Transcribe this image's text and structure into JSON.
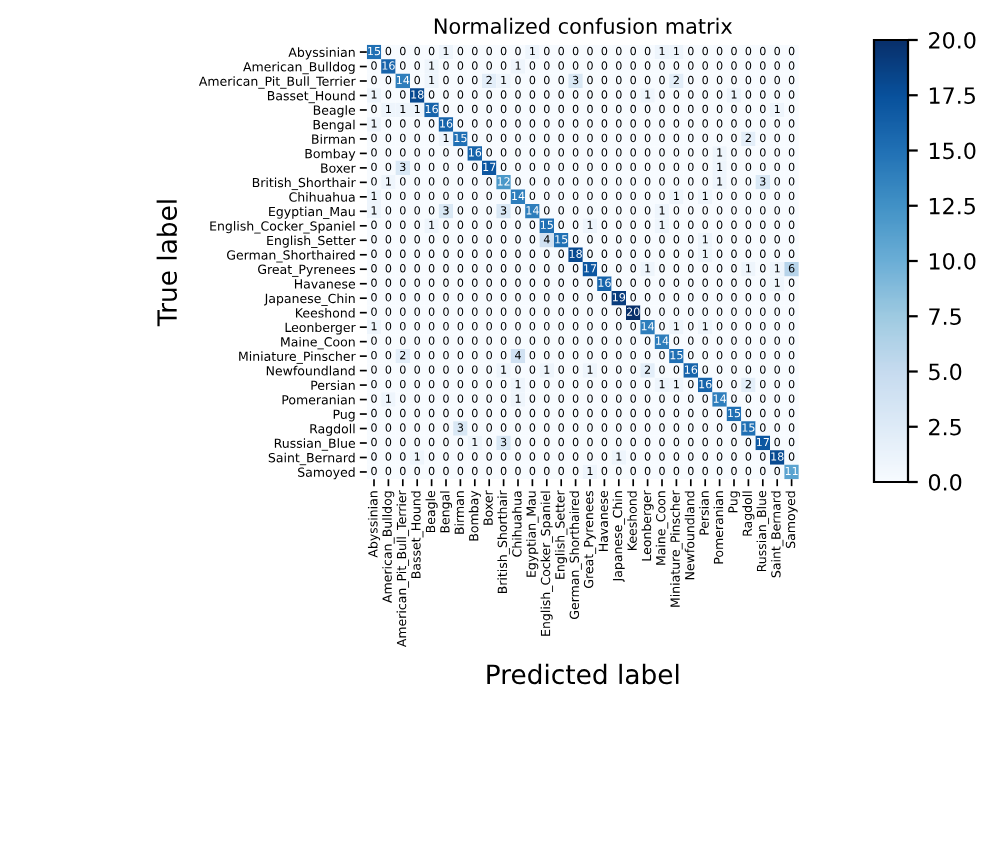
{
  "chart_data": {
    "type": "heatmap",
    "title": "Normalized confusion matrix",
    "xlabel": "Predicted label",
    "ylabel": "True label",
    "categories": [
      "Abyssinian",
      "American_Bulldog",
      "American_Pit_Bull_Terrier",
      "Basset_Hound",
      "Beagle",
      "Bengal",
      "Birman",
      "Bombay",
      "Boxer",
      "British_Shorthair",
      "Chihuahua",
      "Egyptian_Mau",
      "English_Cocker_Spaniel",
      "English_Setter",
      "German_Shorthaired",
      "Great_Pyrenees",
      "Havanese",
      "Japanese_Chin",
      "Keeshond",
      "Leonberger",
      "Maine_Coon",
      "Miniature_Pinscher",
      "Newfoundland",
      "Persian",
      "Pomeranian",
      "Pug",
      "Ragdoll",
      "Russian_Blue",
      "Saint_Bernard",
      "Samoyed"
    ],
    "y_categories": [
      "Abyssinian",
      "American_Bulldog",
      "American_Pit_Bull_Terrier",
      "Basset_Hound",
      "Beagle",
      "Bengal",
      "Birman",
      "Bombay",
      "Boxer",
      "British_Shorthair",
      "Chihuahua",
      "Egyptian_Mau",
      "English_Cocker_Spaniel",
      "English_Setter",
      "German_Shorthaired",
      "Great_Pyrenees",
      "Havanese",
      "Japanese_Chin",
      "Keeshond",
      "Leonberger",
      "Maine_Coon",
      "Miniature_Pinscher",
      "Newfoundland",
      "Persian",
      "Pomeranian",
      "Pug",
      "Ragdoll",
      "Russian_Blue",
      "Saint_Bernard",
      "Samoyed"
    ],
    "cells": [
      [
        15,
        0,
        0,
        0,
        0,
        1,
        0,
        0,
        0,
        0,
        0,
        1,
        0,
        0,
        0,
        0,
        0,
        0,
        0,
        0,
        1,
        1,
        0,
        0,
        0,
        0,
        0,
        0,
        0,
        0
      ],
      [
        0,
        16,
        0,
        0,
        1,
        0,
        0,
        0,
        0,
        0,
        1,
        0,
        0,
        0,
        0,
        0,
        0,
        0,
        0,
        0,
        0,
        0,
        0,
        0,
        0,
        0,
        0,
        0,
        0,
        0
      ],
      [
        0,
        0,
        14,
        0,
        1,
        0,
        0,
        0,
        2,
        1,
        0,
        0,
        0,
        0,
        3,
        0,
        0,
        0,
        0,
        0,
        0,
        2,
        0,
        0,
        0,
        0,
        0,
        0,
        0,
        0
      ],
      [
        1,
        0,
        0,
        18,
        0,
        0,
        0,
        0,
        0,
        0,
        0,
        0,
        0,
        0,
        0,
        0,
        0,
        0,
        0,
        1,
        0,
        0,
        0,
        0,
        0,
        1,
        0,
        0,
        0,
        0
      ],
      [
        0,
        1,
        1,
        1,
        16,
        0,
        0,
        0,
        0,
        0,
        0,
        0,
        0,
        0,
        0,
        0,
        0,
        0,
        0,
        0,
        0,
        0,
        0,
        0,
        0,
        0,
        0,
        0,
        1,
        0
      ],
      [
        1,
        0,
        0,
        0,
        0,
        16,
        0,
        0,
        0,
        0,
        0,
        0,
        0,
        0,
        0,
        0,
        0,
        0,
        0,
        0,
        0,
        0,
        0,
        0,
        0,
        0,
        0,
        0,
        0,
        0
      ],
      [
        0,
        0,
        0,
        0,
        0,
        1,
        15,
        0,
        0,
        0,
        0,
        0,
        0,
        0,
        0,
        0,
        0,
        0,
        0,
        0,
        0,
        0,
        0,
        0,
        0,
        0,
        2,
        0,
        0,
        0
      ],
      [
        0,
        0,
        0,
        0,
        0,
        0,
        0,
        16,
        0,
        0,
        0,
        0,
        0,
        0,
        0,
        0,
        0,
        0,
        0,
        0,
        0,
        0,
        0,
        0,
        1,
        0,
        0,
        0,
        0,
        0
      ],
      [
        0,
        0,
        3,
        0,
        0,
        0,
        0,
        0,
        17,
        0,
        0,
        0,
        0,
        0,
        0,
        0,
        0,
        0,
        0,
        0,
        0,
        0,
        0,
        0,
        1,
        0,
        0,
        0,
        0,
        0
      ],
      [
        0,
        1,
        0,
        0,
        0,
        0,
        0,
        0,
        0,
        12,
        0,
        0,
        0,
        0,
        0,
        0,
        0,
        0,
        0,
        0,
        0,
        0,
        0,
        0,
        1,
        0,
        0,
        3,
        0,
        0
      ],
      [
        1,
        0,
        0,
        0,
        0,
        0,
        0,
        0,
        0,
        0,
        14,
        0,
        0,
        0,
        0,
        0,
        0,
        0,
        0,
        0,
        0,
        1,
        0,
        1,
        0,
        0,
        0,
        0,
        0,
        0
      ],
      [
        1,
        0,
        0,
        0,
        0,
        3,
        0,
        0,
        0,
        3,
        0,
        14,
        0,
        0,
        0,
        0,
        0,
        0,
        0,
        0,
        1,
        0,
        0,
        0,
        0,
        0,
        0,
        0,
        0,
        0
      ],
      [
        0,
        0,
        0,
        0,
        1,
        0,
        0,
        0,
        0,
        0,
        0,
        0,
        15,
        0,
        0,
        1,
        0,
        0,
        0,
        0,
        1,
        0,
        0,
        0,
        0,
        0,
        0,
        0,
        0,
        0
      ],
      [
        0,
        0,
        0,
        0,
        0,
        0,
        0,
        0,
        0,
        0,
        0,
        0,
        4,
        15,
        0,
        0,
        0,
        0,
        0,
        0,
        0,
        0,
        0,
        1,
        0,
        0,
        0,
        0,
        0,
        0
      ],
      [
        0,
        0,
        0,
        0,
        0,
        0,
        0,
        0,
        0,
        0,
        0,
        0,
        0,
        0,
        18,
        0,
        0,
        0,
        0,
        0,
        0,
        0,
        0,
        1,
        0,
        0,
        0,
        0,
        0,
        0
      ],
      [
        0,
        0,
        0,
        0,
        0,
        0,
        0,
        0,
        0,
        0,
        0,
        0,
        0,
        0,
        0,
        17,
        0,
        0,
        0,
        1,
        0,
        0,
        0,
        0,
        0,
        0,
        1,
        0,
        1,
        6
      ],
      [
        0,
        0,
        0,
        0,
        0,
        0,
        0,
        0,
        0,
        0,
        0,
        0,
        0,
        0,
        0,
        0,
        16,
        0,
        0,
        0,
        0,
        0,
        0,
        0,
        0,
        0,
        0,
        0,
        1,
        0
      ],
      [
        0,
        0,
        0,
        0,
        0,
        0,
        0,
        0,
        0,
        0,
        0,
        0,
        0,
        0,
        0,
        0,
        0,
        19,
        0,
        0,
        0,
        0,
        0,
        0,
        0,
        0,
        0,
        0,
        0,
        0
      ],
      [
        0,
        0,
        0,
        0,
        0,
        0,
        0,
        0,
        0,
        0,
        0,
        0,
        0,
        0,
        0,
        0,
        0,
        0,
        20,
        0,
        0,
        0,
        0,
        0,
        0,
        0,
        0,
        0,
        0,
        0
      ],
      [
        1,
        0,
        0,
        0,
        0,
        0,
        0,
        0,
        0,
        0,
        0,
        0,
        0,
        0,
        0,
        0,
        0,
        0,
        0,
        14,
        0,
        1,
        0,
        1,
        0,
        0,
        0,
        0,
        0,
        0
      ],
      [
        0,
        0,
        0,
        0,
        0,
        0,
        0,
        0,
        0,
        0,
        0,
        0,
        0,
        0,
        0,
        0,
        0,
        0,
        0,
        0,
        14,
        0,
        0,
        0,
        0,
        0,
        0,
        0,
        0,
        0
      ],
      [
        0,
        0,
        2,
        0,
        0,
        0,
        0,
        0,
        0,
        0,
        4,
        0,
        0,
        0,
        0,
        0,
        0,
        0,
        0,
        0,
        0,
        15,
        0,
        0,
        0,
        0,
        0,
        0,
        0,
        0
      ],
      [
        0,
        0,
        0,
        0,
        0,
        0,
        0,
        0,
        0,
        1,
        0,
        0,
        1,
        0,
        0,
        1,
        0,
        0,
        0,
        2,
        0,
        0,
        16,
        0,
        0,
        0,
        0,
        0,
        0,
        0
      ],
      [
        0,
        0,
        0,
        0,
        0,
        0,
        0,
        0,
        0,
        0,
        1,
        0,
        0,
        0,
        0,
        0,
        0,
        0,
        0,
        0,
        1,
        1,
        0,
        16,
        0,
        0,
        2,
        0,
        0,
        0
      ],
      [
        0,
        1,
        0,
        0,
        0,
        0,
        0,
        0,
        0,
        0,
        1,
        0,
        0,
        0,
        0,
        0,
        0,
        0,
        0,
        0,
        0,
        0,
        0,
        0,
        14,
        0,
        0,
        0,
        0,
        0
      ],
      [
        0,
        0,
        0,
        0,
        0,
        0,
        0,
        0,
        0,
        0,
        0,
        0,
        0,
        0,
        0,
        0,
        0,
        0,
        0,
        0,
        0,
        0,
        0,
        0,
        0,
        15,
        0,
        0,
        0,
        0
      ],
      [
        0,
        0,
        0,
        0,
        0,
        0,
        3,
        0,
        0,
        0,
        0,
        0,
        0,
        0,
        0,
        0,
        0,
        0,
        0,
        0,
        0,
        0,
        0,
        0,
        0,
        0,
        15,
        0,
        0,
        0
      ],
      [
        0,
        0,
        0,
        0,
        0,
        0,
        0,
        1,
        0,
        3,
        0,
        0,
        0,
        0,
        0,
        0,
        0,
        0,
        0,
        0,
        0,
        0,
        0,
        0,
        0,
        0,
        0,
        17,
        0,
        0
      ],
      [
        0,
        0,
        0,
        1,
        0,
        0,
        0,
        0,
        0,
        0,
        0,
        0,
        0,
        0,
        0,
        0,
        0,
        1,
        0,
        0,
        0,
        0,
        0,
        0,
        0,
        0,
        0,
        0,
        18,
        0
      ],
      [
        0,
        0,
        0,
        0,
        0,
        0,
        0,
        0,
        0,
        0,
        0,
        0,
        0,
        0,
        0,
        1,
        0,
        0,
        0,
        0,
        0,
        0,
        0,
        0,
        0,
        0,
        0,
        0,
        0,
        11
      ]
    ],
    "clim": [
      0,
      20
    ],
    "cticks": [
      {
        "value": 0,
        "label": "0.0"
      },
      {
        "value": 2.5,
        "label": "2.5"
      },
      {
        "value": 5,
        "label": "5.0"
      },
      {
        "value": 7.5,
        "label": "7.5"
      },
      {
        "value": 10,
        "label": "10.0"
      },
      {
        "value": 12.5,
        "label": "12.5"
      },
      {
        "value": 15,
        "label": "15.0"
      },
      {
        "value": 17.5,
        "label": "17.5"
      },
      {
        "value": 20,
        "label": "20.0"
      }
    ],
    "data_labels": true
  }
}
